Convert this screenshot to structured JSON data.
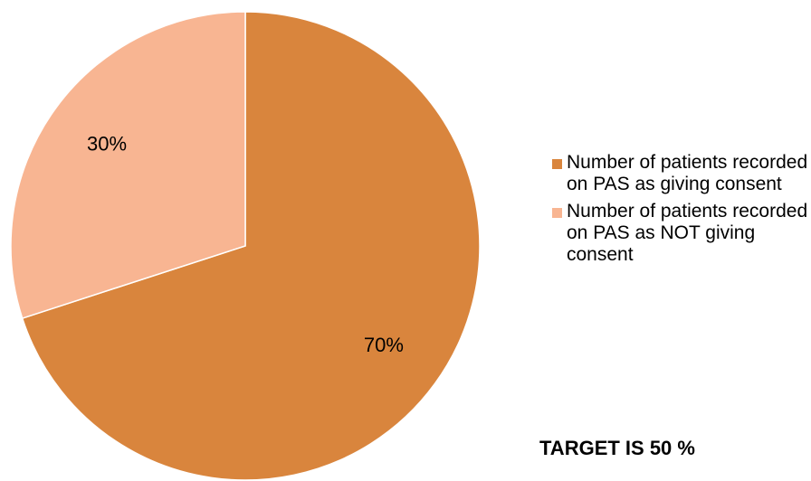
{
  "chart_data": {
    "type": "pie",
    "categories": [
      "Number of patients recorded on PAS as giving consent",
      "Number of patients recorded on PAS as NOT giving consent"
    ],
    "values": [
      70,
      30
    ],
    "data_labels": [
      "70%",
      "30%"
    ],
    "colors": [
      "#D9853D",
      "#F8B592"
    ],
    "legend_position": "right"
  },
  "legend": {
    "items": [
      {
        "label": "Number of patients recorded on PAS as giving consent",
        "color": "#D9853D"
      },
      {
        "label": "Number of patients recorded on PAS as NOT giving consent",
        "color": "#F8B592"
      }
    ]
  },
  "target_note": "TARGET IS 50 %"
}
